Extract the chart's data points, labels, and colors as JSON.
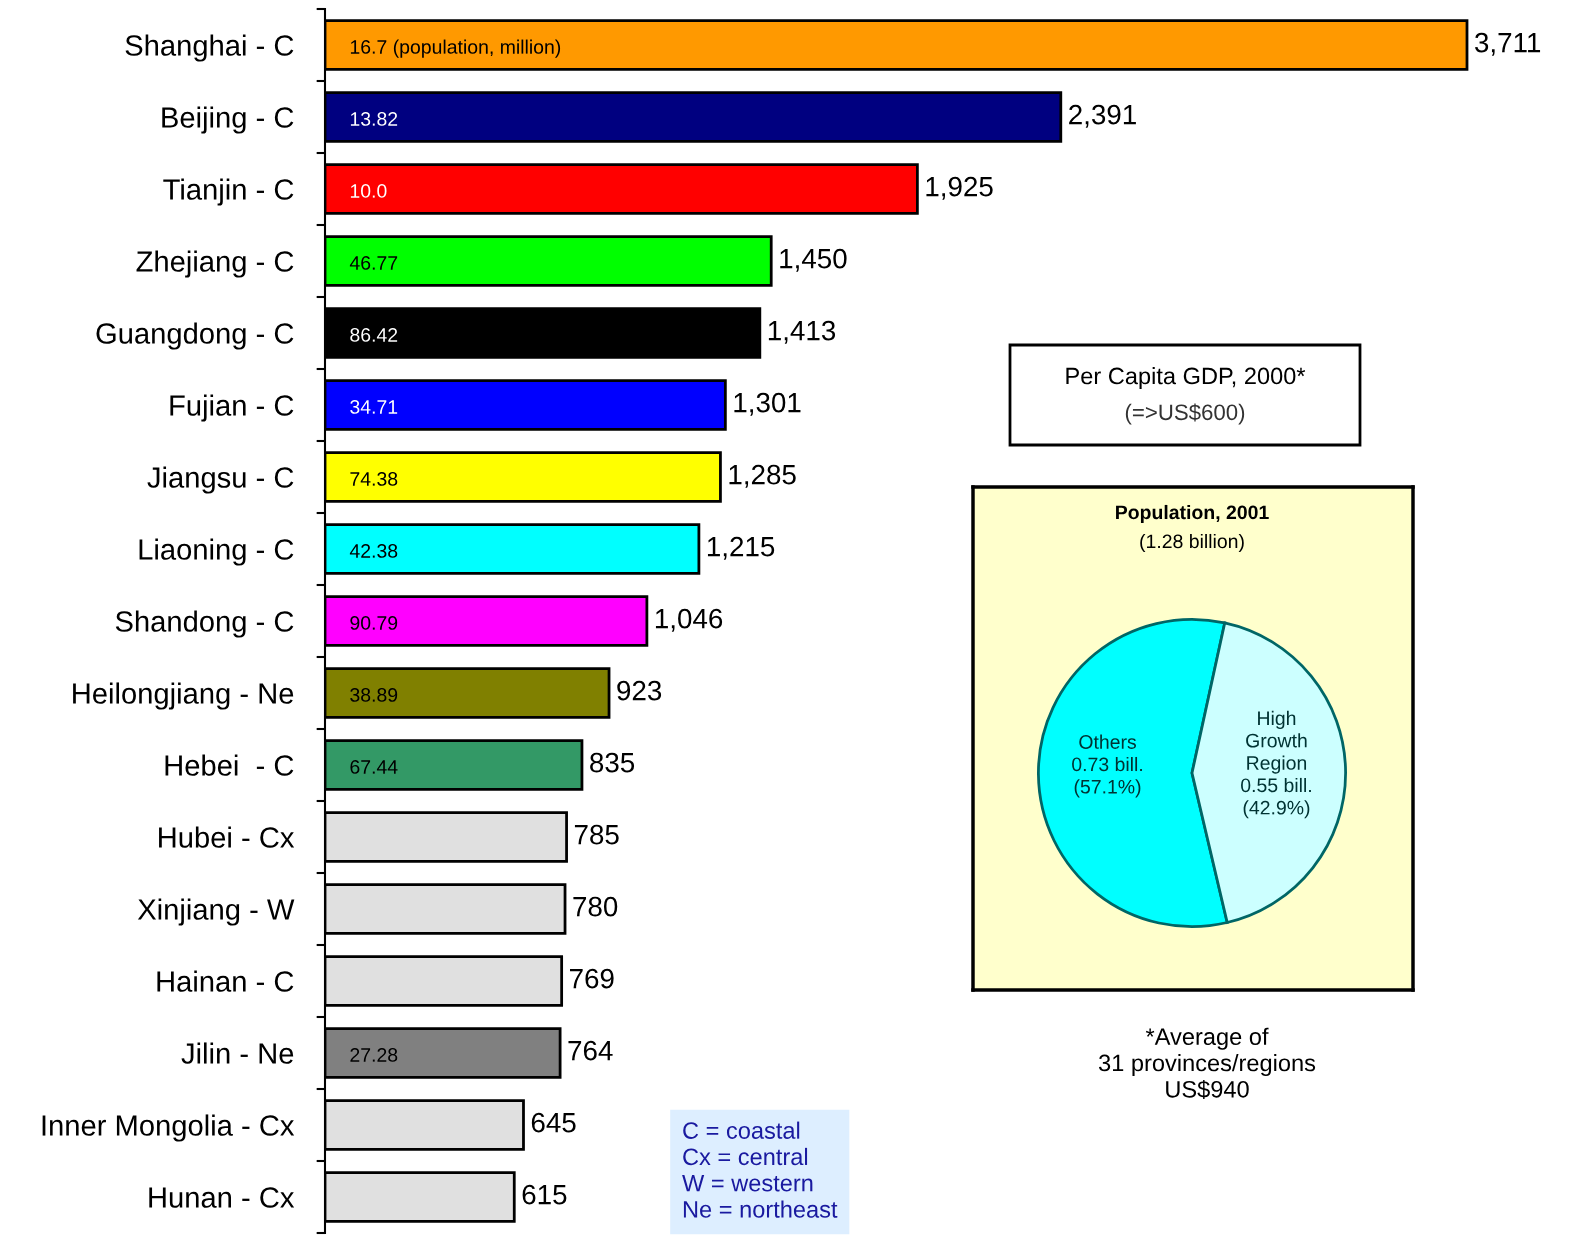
{
  "chart_data": [
    {
      "type": "bar",
      "orientation": "horizontal",
      "title": "Per Capita GDP, 2000*",
      "subtitle": "(=>US$600)",
      "categories": [
        "Shanghai - C",
        "Beijing - C",
        "Tianjin - C",
        "Zhejiang - C",
        "Guangdong - C",
        "Fujian - C",
        "Jiangsu - C",
        "Liaoning - C",
        "Shandong - C",
        "Heilongjiang - Ne",
        "Hebei  - C",
        "Hubei - Cx",
        "Xinjiang - W",
        "Hainan - C",
        "Jilin - Ne",
        "Inner Mongolia - Cx",
        "Hunan - Cx"
      ],
      "values": [
        3711,
        2391,
        1925,
        1450,
        1413,
        1301,
        1285,
        1215,
        1046,
        923,
        835,
        785,
        780,
        769,
        764,
        645,
        615
      ],
      "value_labels": [
        "3,711",
        "2,391",
        "1,925",
        "1,450",
        "1,413",
        "1,301",
        "1,285",
        "1,215",
        "1,046",
        "923",
        "835",
        "785",
        "780",
        "769",
        "764",
        "645",
        "615"
      ],
      "colors": [
        "#ff9900",
        "#000080",
        "#ff0000",
        "#00ff00",
        "#000000",
        "#0000ff",
        "#ffff00",
        "#00ffff",
        "#ff00ff",
        "#808000",
        "#339966",
        "#e0e0e0",
        "#e0e0e0",
        "#e0e0e0",
        "#808080",
        "#e0e0e0",
        "#e0e0e0"
      ],
      "annotations": [
        "16.7 (population, million)",
        "13.82",
        "10.0",
        "46.77",
        "86.42",
        "34.71",
        "74.38",
        "42.38",
        "90.79",
        "38.89",
        "67.44",
        "27.28",
        "*Average of\n31 provinces/regions\nUS$940",
        "C = coastal\nCx = central\nW = western\nNe = northeast"
      ],
      "grid": false
    },
    {
      "type": "pie",
      "title": "Population, 2001",
      "subtitle": "(1.28 billion)",
      "categories": [
        "Others",
        "High\nGrowth\nRegion"
      ],
      "values": [
        57.1,
        42.9
      ],
      "value_labels": [
        "0.73 bill.\n(57.1%)",
        "0.55 bill.\n(42.9%)"
      ],
      "colors": [
        "#00ffff",
        "#ccffff"
      ]
    }
  ]
}
